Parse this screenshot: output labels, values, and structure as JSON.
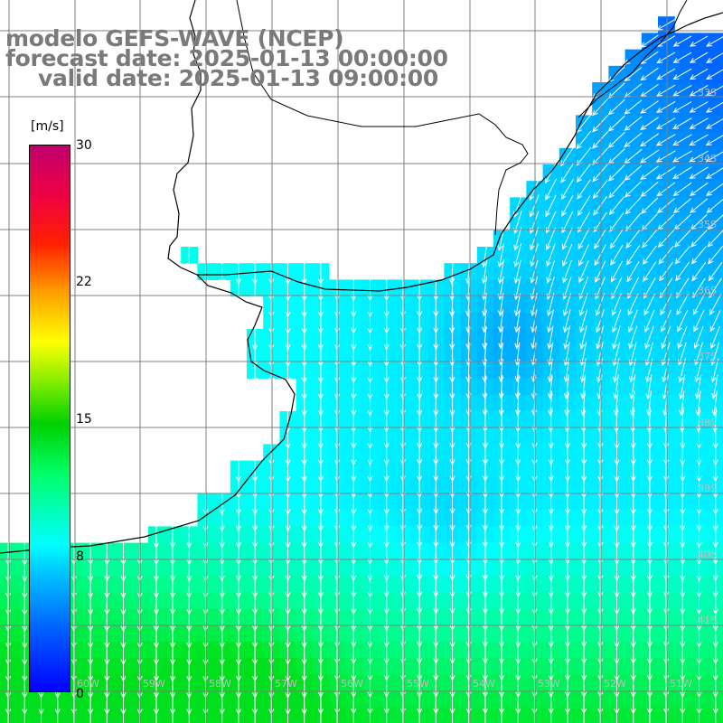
{
  "title": {
    "line1": "modelo GEFS-WAVE (NCEP)",
    "line2": "forecast date: 2025-01-13 00:00:00",
    "line3": "valid date: 2025-01-13 09:00:00"
  },
  "colorbar": {
    "unit": "[m/s]",
    "ticks": [
      "30",
      "22",
      "15",
      "8",
      "0"
    ]
  },
  "map": {
    "lat_labels": [
      "33S",
      "34S",
      "35S",
      "36S",
      "37S",
      "38S",
      "39S",
      "40S",
      "41S"
    ],
    "lon_labels": [
      "60W",
      "59W",
      "58W",
      "57W",
      "56W",
      "55W",
      "54W",
      "53W",
      "52W",
      "51W"
    ],
    "colors": {
      "land": "#ffffff",
      "grid": "#808080",
      "coast": "#000000",
      "vector": "#ffffff"
    }
  }
}
